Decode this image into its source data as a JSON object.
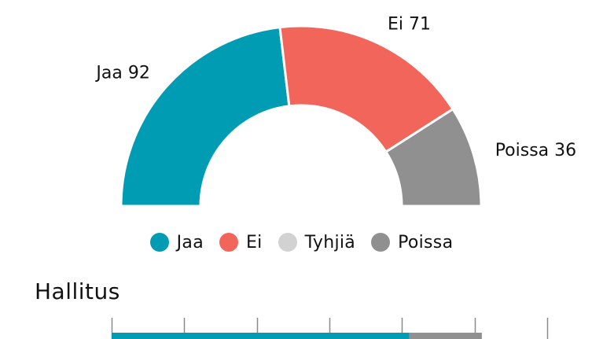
{
  "chart_data": [
    {
      "type": "pie",
      "variant": "semi-donut",
      "categories": [
        "Jaa",
        "Ei",
        "Tyhjiä",
        "Poissa"
      ],
      "values": [
        92,
        71,
        0,
        36
      ],
      "labels": [
        "Jaa 92",
        "Ei 71",
        "",
        "Poissa 36"
      ],
      "colors": [
        "#009cb4",
        "#f2655a",
        "#d2d2d2",
        "#909090"
      ],
      "legend": {
        "position": "bottom",
        "items": [
          {
            "label": "Jaa",
            "color": "#009cb4"
          },
          {
            "label": "Ei",
            "color": "#f2655a"
          },
          {
            "label": "Tyhjiä",
            "color": "#d2d2d2"
          },
          {
            "label": "Poissa",
            "color": "#909090"
          }
        ]
      }
    },
    {
      "type": "bar",
      "orientation": "horizontal",
      "stacked": true,
      "title": "Hallitus",
      "categories": [
        "Hallitus"
      ],
      "series": [
        {
          "name": "Jaa",
          "values": [
            82
          ],
          "color": "#009cb4"
        },
        {
          "name": "Ei",
          "values": [
            0
          ],
          "color": "#f2655a"
        },
        {
          "name": "Tyhjiä",
          "values": [
            0
          ],
          "color": "#d2d2d2"
        },
        {
          "name": "Poissa",
          "values": [
            20
          ],
          "color": "#909090"
        }
      ],
      "xlim": [
        0,
        120
      ],
      "grid": true
    }
  ]
}
